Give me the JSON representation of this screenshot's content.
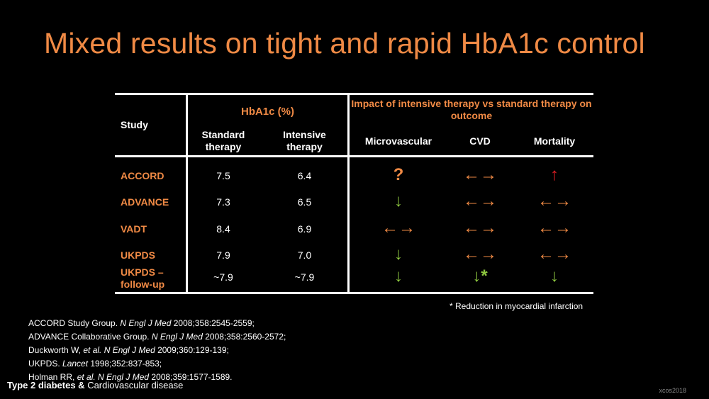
{
  "title": "Mixed results on tight and rapid HbA1c control",
  "table": {
    "study_header": "Study",
    "hba1c_header": "HbA1c (%)",
    "standard_header": "Standard therapy",
    "intensive_header": "Intensive therapy",
    "impact_header": "Impact of intensive therapy vs standard therapy on outcome",
    "micro_header": "Microvascular",
    "cvd_header": "CVD",
    "mortality_header": "Mortality",
    "rows": [
      {
        "study": "ACCORD",
        "standard": "7.5",
        "intensive": "6.4",
        "micro": "?",
        "micro_color": "orange",
        "cvd": "←→",
        "cvd_color": "orange",
        "mortality": "↑",
        "mortality_color": "red"
      },
      {
        "study": "ADVANCE",
        "standard": "7.3",
        "intensive": "6.5",
        "micro": "↓",
        "micro_color": "green",
        "cvd": "←→",
        "cvd_color": "orange",
        "mortality": "←→",
        "mortality_color": "orange"
      },
      {
        "study": "VADT",
        "standard": "8.4",
        "intensive": "6.9",
        "micro": "←→",
        "micro_color": "orange",
        "cvd": "←→",
        "cvd_color": "orange",
        "mortality": "←→",
        "mortality_color": "orange"
      },
      {
        "study": "UKPDS",
        "standard": "7.9",
        "intensive": "7.0",
        "micro": "↓",
        "micro_color": "green",
        "cvd": "←→",
        "cvd_color": "orange",
        "mortality": "←→",
        "mortality_color": "orange"
      },
      {
        "study": "UKPDS – follow-up",
        "standard": "~7.9",
        "intensive": "~7.9",
        "micro": "↓",
        "micro_color": "green",
        "cvd": "↓*",
        "cvd_color": "green",
        "mortality": "↓",
        "mortality_color": "green"
      }
    ]
  },
  "footnote": "* Reduction in myocardial infarction",
  "references": [
    {
      "pre": "ACCORD Study Group. ",
      "journal": "N Engl J Med",
      "post": " 2008;358:2545-2559;"
    },
    {
      "pre": "ADVANCE Collaborative Group. ",
      "journal": "N Engl J Med",
      "post": " 2008;358:2560-2572;"
    },
    {
      "pre": "Duckworth W, ",
      "etal": "et al.",
      "journal": "N Engl J Med",
      "post": " 2009;360:129-139;"
    },
    {
      "pre": "UKPDS. ",
      "journal": "Lancet",
      "post": " 1998;352:837-853;"
    },
    {
      "pre": "Holman RR, ",
      "etal": "et al.",
      "journal": "N Engl J Med",
      "post": " 2008;359:1577-1589."
    }
  ],
  "footer": {
    "bold": "Type 2 diabetes &",
    "rest": " Cardiovascular disease"
  },
  "code": "xcos2018",
  "colors": {
    "orange": "#f08a45",
    "green": "#8dc63f",
    "red": "#e31e24"
  }
}
